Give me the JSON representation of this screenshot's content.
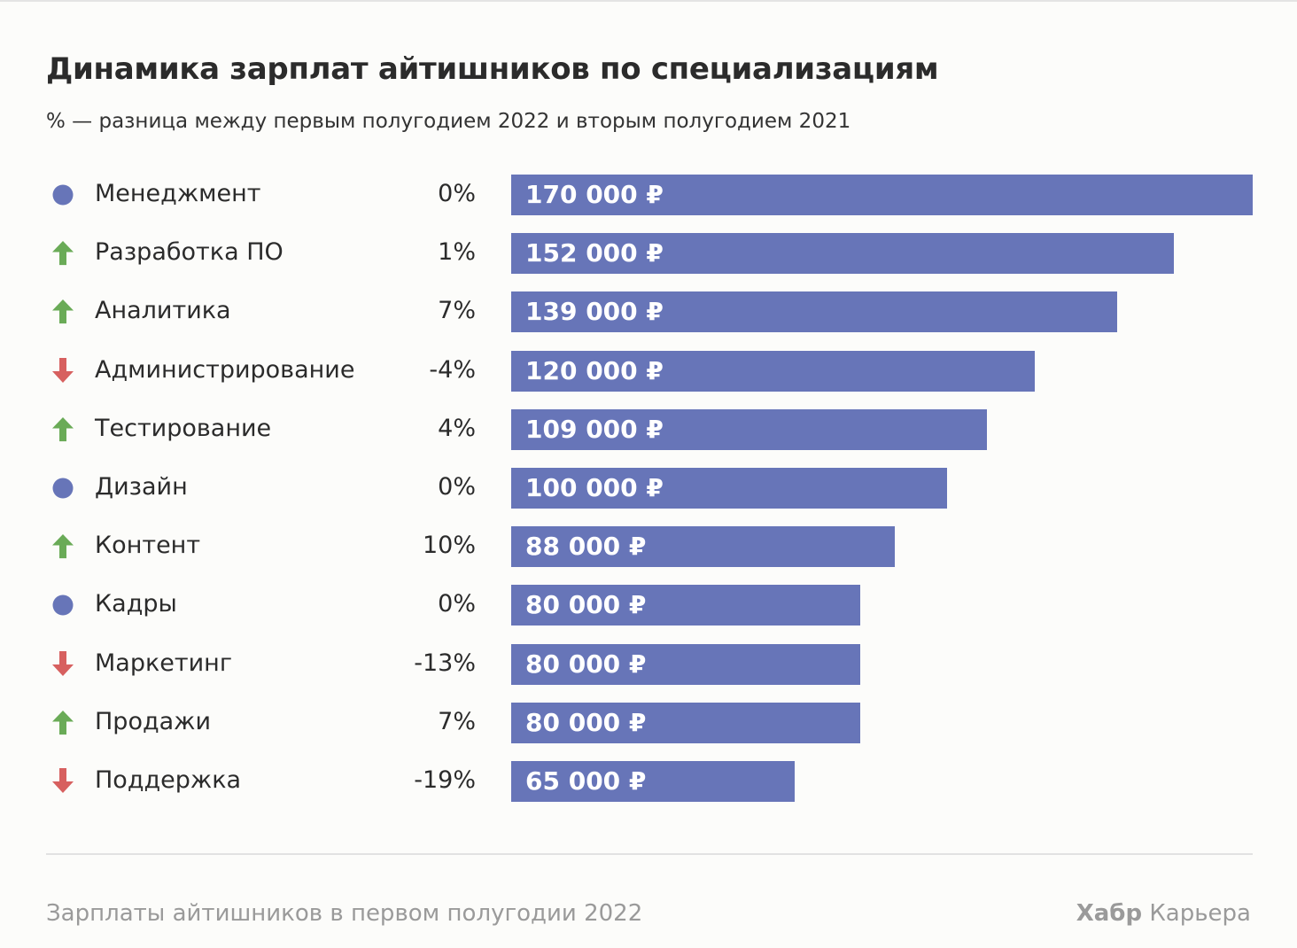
{
  "colors": {
    "bar": "#6775b8",
    "up": "#6aab57",
    "down": "#d7605f",
    "flat": "#6775b8"
  },
  "chart_data": {
    "type": "bar",
    "orientation": "horizontal",
    "title": "Динамика зарплат айтишников по специализациям",
    "subtitle": "% — разница между первым полугодием 2022 и вторым полугодием 2021",
    "xlim": [
      0,
      170000
    ],
    "categories": [
      "Менеджмент",
      "Разработка ПО",
      "Аналитика",
      "Администрирование",
      "Тестирование",
      "Дизайн",
      "Контент",
      "Кадры",
      "Маркетинг",
      "Продажи",
      "Поддержка"
    ],
    "values": [
      170000,
      152000,
      139000,
      120000,
      109000,
      100000,
      88000,
      80000,
      80000,
      80000,
      65000
    ],
    "value_labels": [
      "170 000 ₽",
      "152 000 ₽",
      "139 000 ₽",
      "120 000 ₽",
      "109 000 ₽",
      "100 000 ₽",
      "88 000 ₽",
      "80 000 ₽",
      "80 000 ₽",
      "80 000 ₽",
      "65 000 ₽"
    ],
    "change_labels": [
      "0%",
      "1%",
      "7%",
      "-4%",
      "4%",
      "0%",
      "10%",
      "0%",
      "-13%",
      "7%",
      "-19%"
    ],
    "trends": [
      "flat",
      "up",
      "up",
      "down",
      "up",
      "flat",
      "up",
      "flat",
      "down",
      "up",
      "down"
    ]
  },
  "footer": {
    "caption": "Зарплаты айтишников в первом полугодии 2022",
    "brand_bold": "Хабр",
    "brand_rest": " Карьера"
  }
}
